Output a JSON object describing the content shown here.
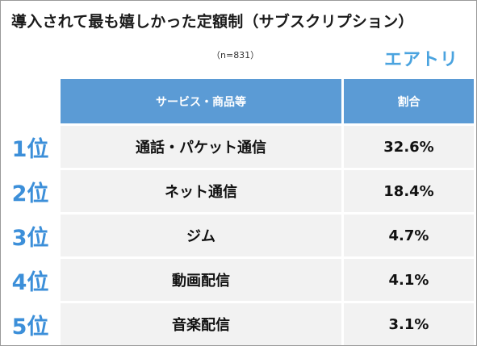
{
  "title": "導入されて最も嬉しかった定額制（サブスクリプション）",
  "sample_size": "（n=831）",
  "brand": "エアトリ",
  "header": {
    "service": "サービス・商品等",
    "ratio": "割合"
  },
  "chart_data": {
    "type": "table",
    "columns": [
      "サービス・商品等",
      "割合"
    ],
    "rows": [
      {
        "rank": "1位",
        "service": "通話・パケット通信",
        "ratio": "32.6%",
        "value": 32.6
      },
      {
        "rank": "2位",
        "service": "ネット通信",
        "ratio": "18.4%",
        "value": 18.4
      },
      {
        "rank": "3位",
        "service": "ジム",
        "ratio": "4.7%",
        "value": 4.7
      },
      {
        "rank": "4位",
        "service": "動画配信",
        "ratio": "4.1%",
        "value": 4.1
      },
      {
        "rank": "5位",
        "service": "音楽配信",
        "ratio": "3.1%",
        "value": 3.1
      }
    ]
  },
  "colors": {
    "header_bg": "#5b9bd5",
    "rank_text": "#3c8fd9",
    "row_shade": "#f2f2f2",
    "brand": "#4aa3df"
  }
}
